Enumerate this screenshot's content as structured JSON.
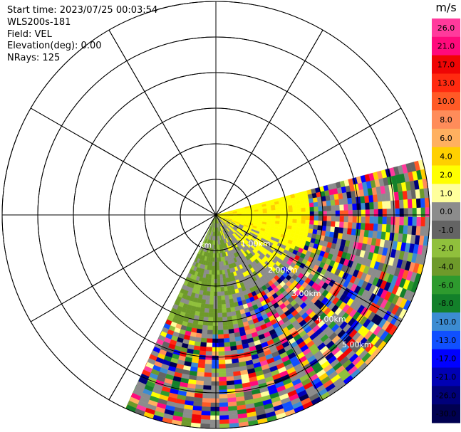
{
  "info": {
    "start_time": "Start time: 2023/07/25 00:03:54",
    "instrument": "WLS200s-181",
    "field": "Field: VEL",
    "elevation": "Elevation(deg): 0.00",
    "nrays": "NRays: 125"
  },
  "colorbar": {
    "unit": "m/s",
    "ticks": [
      "26.0",
      "21.0",
      "17.0",
      "13.0",
      "10.0",
      "8.0",
      "6.0",
      "4.0",
      "2.0",
      "1.0",
      "0.0",
      "-1.0",
      "-2.0",
      "-4.0",
      "-6.0",
      "-8.0",
      "-10.0",
      "-13.0",
      "-17.0",
      "-21.0",
      "-26.0",
      "-30.0"
    ],
    "colors": [
      "#ff3a9c",
      "#ff0a7c",
      "#ef0505",
      "#ff2a10",
      "#ff5a26",
      "#ff8c5a",
      "#ffb060",
      "#ffd000",
      "#ffff00",
      "#ffff9c",
      "#8c8c8c",
      "#646464",
      "#90c03c",
      "#6e9a2a",
      "#2e9a2e",
      "#13802a",
      "#3c8cd2",
      "#1050ff",
      "#0000ff",
      "#0000b4",
      "#00007a",
      "#000050"
    ]
  },
  "range_rings": [
    "1.00km",
    "2.00km",
    "3.00km",
    "4.00km",
    "5.00km"
  ],
  "sector": {
    "start_azimuth_deg": 75,
    "end_azimuth_deg": 205
  }
}
